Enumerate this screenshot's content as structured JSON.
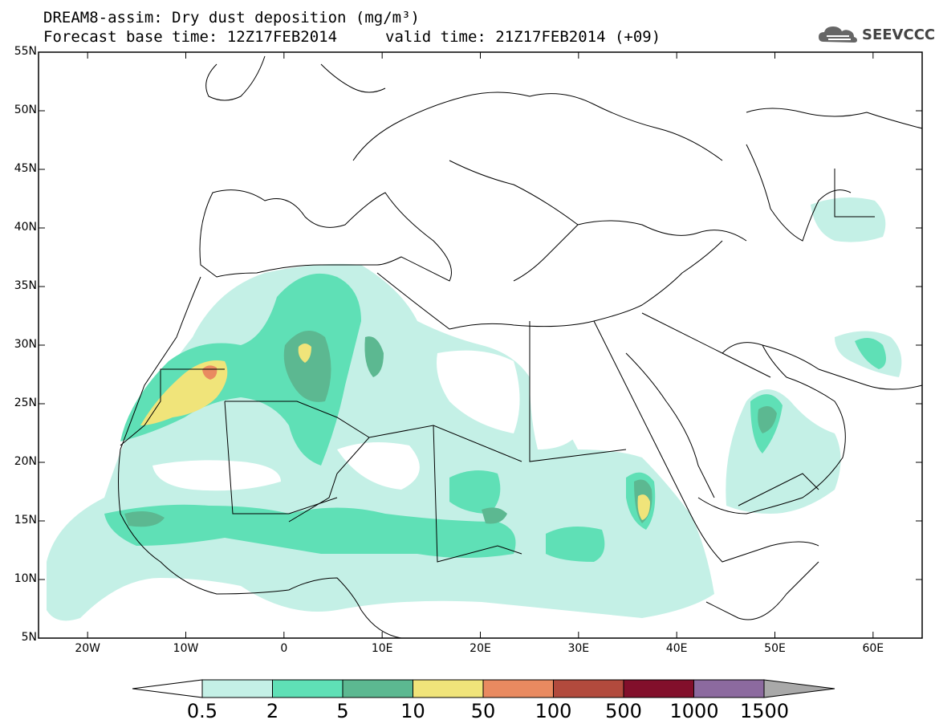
{
  "title": {
    "line1": "DREAM8-assim: Dry dust deposition (mg/m³)",
    "line2_base": "Forecast base time: 12Z17FEB2014",
    "line2_valid": "valid time: 21Z17FEB2014 (+09)"
  },
  "logo": {
    "text": "SEEVCCC",
    "icon": "cloud-logo-icon"
  },
  "axes": {
    "lat_ticks": [
      "55N",
      "50N",
      "45N",
      "40N",
      "35N",
      "30N",
      "25N",
      "20N",
      "15N",
      "10N",
      "5N"
    ],
    "lon_ticks": [
      "20W",
      "10W",
      "0",
      "10E",
      "20E",
      "30E",
      "40E",
      "50E",
      "60E"
    ],
    "lat_range": [
      5,
      55
    ],
    "lon_range": [
      -25,
      65
    ]
  },
  "colorbar": {
    "labels": [
      "0.5",
      "2",
      "5",
      "10",
      "50",
      "100",
      "500",
      "1000",
      "1500"
    ],
    "colors": [
      "#c4f0e6",
      "#5fe0b6",
      "#5cb891",
      "#f0e47a",
      "#e98a60",
      "#b24a3d",
      "#820f2b",
      "#8c6a9f"
    ],
    "under_color": "#ffffff",
    "over_color": "#a9a9a9"
  }
}
